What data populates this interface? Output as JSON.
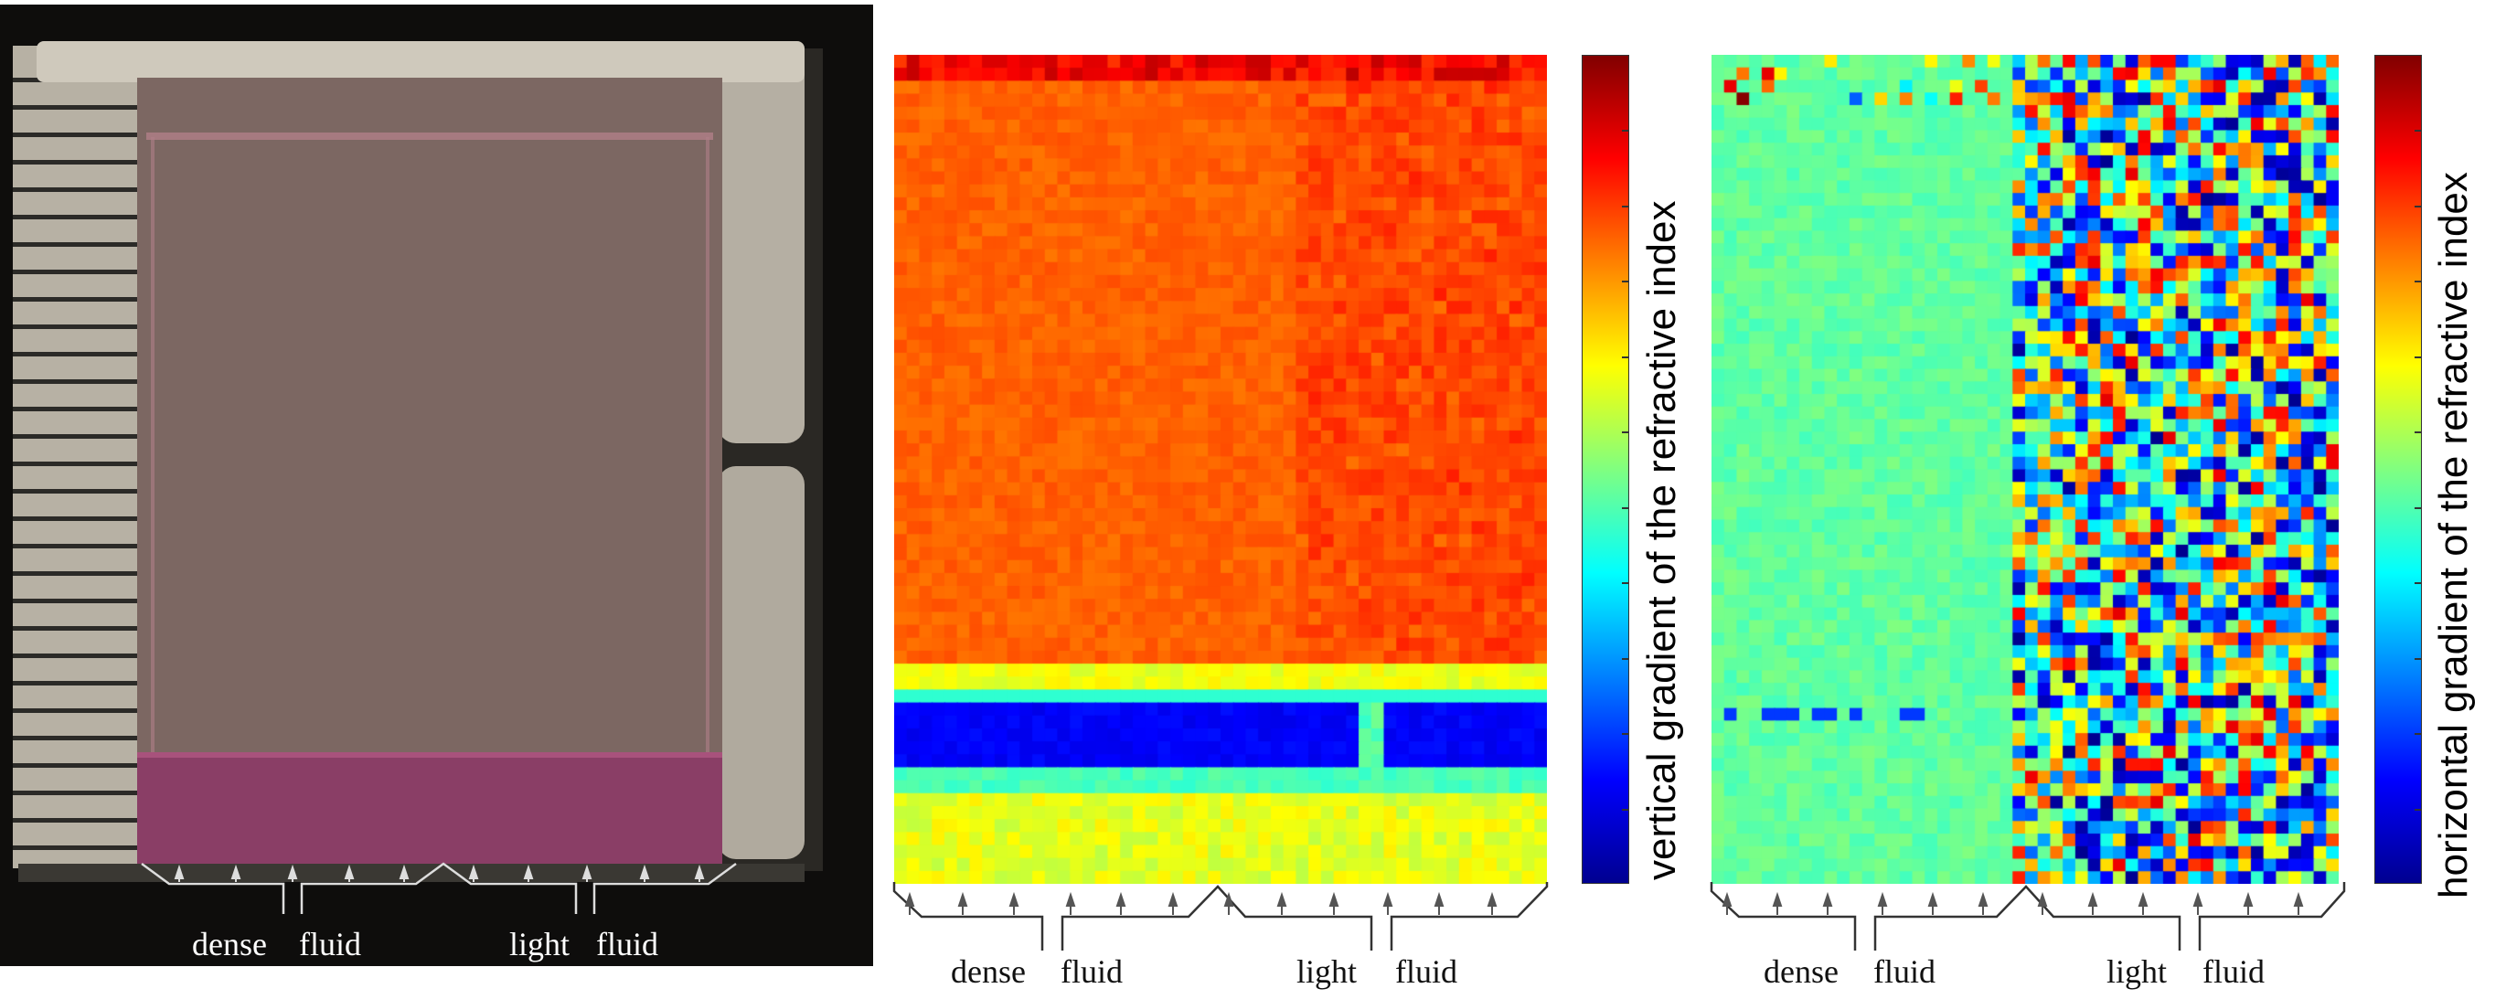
{
  "panels": {
    "photo": {
      "labels": {
        "dense": "dense",
        "fluid1": "fluid",
        "light": "light",
        "fluid2": "fluid"
      }
    },
    "vertical": {
      "colorbar_label": "vertical gradient of the refractive index",
      "labels": {
        "dense": "dense",
        "fluid1": "fluid",
        "light": "light",
        "fluid2": "fluid"
      }
    },
    "horizontal": {
      "colorbar_label": "horizontal gradient of the refractive index",
      "labels": {
        "dense": "dense",
        "fluid1": "fluid",
        "light": "light",
        "fluid2": "fluid"
      }
    }
  },
  "colormap": [
    "#00008f",
    "#0000ff",
    "#0080ff",
    "#00ffff",
    "#80ff80",
    "#ffff00",
    "#ff8000",
    "#ff0000",
    "#800000"
  ]
}
